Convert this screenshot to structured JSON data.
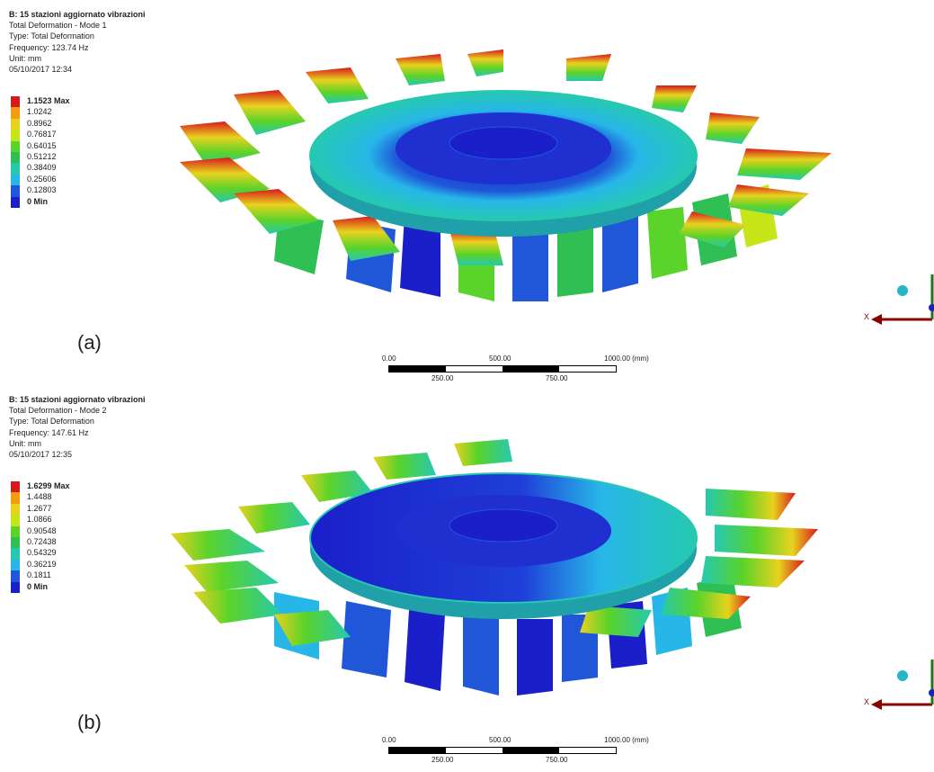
{
  "panels": [
    {
      "id": "a",
      "title": "B: 15 stazioni aggiornato vibrazioni",
      "lines": [
        "Total Deformation - Mode 1",
        "Type: Total Deformation",
        "Frequency: 123.74 Hz",
        "Unit: mm",
        "05/10/2017 12:34"
      ],
      "legend": [
        "1.1523 Max",
        "1.0242",
        "0.8962",
        "0.76817",
        "0.64015",
        "0.51212",
        "0.38409",
        "0.25606",
        "0.12803",
        "0 Min"
      ],
      "figure_label": "(a)"
    },
    {
      "id": "b",
      "title": "B: 15 stazioni aggiornato vibrazioni",
      "lines": [
        "Total Deformation - Mode 2",
        "Type: Total Deformation",
        "Frequency: 147.61 Hz",
        "Unit: mm",
        "05/10/2017 12:35"
      ],
      "legend": [
        "1.6299 Max",
        "1.4488",
        "1.2677",
        "1.0866",
        "0.90548",
        "0.72438",
        "0.54329",
        "0.36219",
        "0.1811",
        "0 Min"
      ],
      "figure_label": "(b)"
    }
  ],
  "legend_colors": [
    "#d7191c",
    "#f39c12",
    "#e8d21e",
    "#c6e61a",
    "#5ad32a",
    "#2fbf54",
    "#26c9b0",
    "#27b6e8",
    "#1f57d8",
    "#1a1fc9"
  ],
  "scalebar": {
    "top_labels": [
      "0.00",
      "500.00",
      "1000.00 (mm)"
    ],
    "bottom_labels": [
      "250.00",
      "750.00"
    ]
  },
  "triad": {
    "x_label": "X"
  }
}
